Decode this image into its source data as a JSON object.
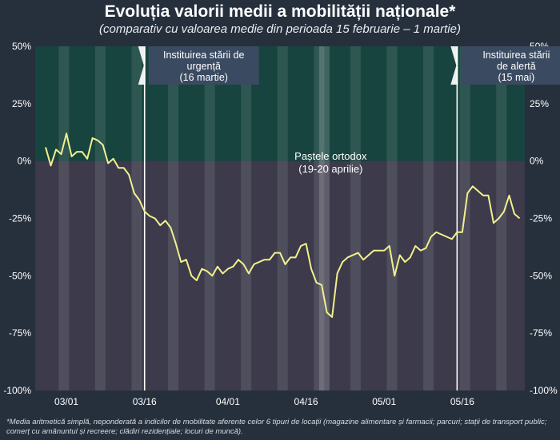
{
  "title": "Evoluția valorii medii a mobilității naționale*",
  "subtitle": "(comparativ cu valoarea medie din perioada 15 februarie – 1 martie)",
  "footnote": "*Media aritmetică simplă, neponderată a indicilor de mobilitate aferente celor 6 tipuri de locații (magazine alimentare și farmacii; parcuri; stații de transport public; comerț cu amănuntul și recreere; clădiri rezidențiale; locuri de muncă).",
  "colors": {
    "background": "#26303d",
    "positive_band": "#17443f",
    "negative_band": "#3c3a4b",
    "line": "#f2f08c",
    "weekend_shade": "#ffffff",
    "annotation_box": "#3a4a60",
    "marker_line": "#ffffff"
  },
  "chart_data": {
    "type": "line",
    "x_start": "2020-02-26",
    "x_end": "2020-05-26",
    "xlim": [
      "2020-02-24",
      "2020-05-28"
    ],
    "ylim": [
      -100,
      50
    ],
    "yticks": [
      "50%",
      "25%",
      "0%",
      "-25%",
      "-50%",
      "-75%",
      "-100%"
    ],
    "ytick_values": [
      50,
      25,
      0,
      -25,
      -50,
      -75,
      -100
    ],
    "xticks": [
      {
        "label": "03/01",
        "date": "2020-03-01"
      },
      {
        "label": "03/16",
        "date": "2020-03-16"
      },
      {
        "label": "04/01",
        "date": "2020-04-01"
      },
      {
        "label": "04/16",
        "date": "2020-04-16"
      },
      {
        "label": "05/01",
        "date": "2020-05-01"
      },
      {
        "label": "05/16",
        "date": "2020-05-16"
      }
    ],
    "series": [
      {
        "values": [
          6,
          -2,
          5,
          3,
          12,
          2,
          4,
          4,
          1,
          10,
          9,
          7,
          -1,
          1,
          -3,
          -3,
          -6,
          -14,
          -17,
          -22,
          -24,
          -25,
          -28,
          -26,
          -29,
          -36,
          -44,
          -43,
          -50,
          -52,
          -47,
          -48,
          -50,
          -46,
          -49,
          -47,
          -46,
          -43,
          -45,
          -49,
          -45,
          -44,
          -43,
          -43,
          -40,
          -40,
          -45,
          -42,
          -42,
          -37,
          -36,
          -47,
          -53,
          -54,
          -66,
          -68,
          -49,
          -44,
          -42,
          -41,
          -40,
          -43,
          -41,
          -39,
          -39,
          -39,
          -37,
          -50,
          -41,
          -44,
          -42,
          -37,
          -39,
          -38,
          -33,
          -31,
          -32,
          -33,
          -34,
          -31,
          -31,
          -14,
          -11,
          -13,
          -15,
          -15,
          -27,
          -25,
          -22,
          -15,
          -23,
          -25
        ]
      }
    ],
    "annotations": [
      {
        "date": "2020-03-16",
        "lines": [
          "Instituirea stării de",
          "urgență",
          "(16 martie)"
        ]
      },
      {
        "date": "2020-05-15",
        "lines": [
          "Instituirea stării",
          "de alertă",
          "(15 mai)"
        ]
      },
      {
        "date": "2020-04-19",
        "lines": [
          "Paștele ortodox",
          "(19-20 aprilie)"
        ]
      }
    ]
  }
}
